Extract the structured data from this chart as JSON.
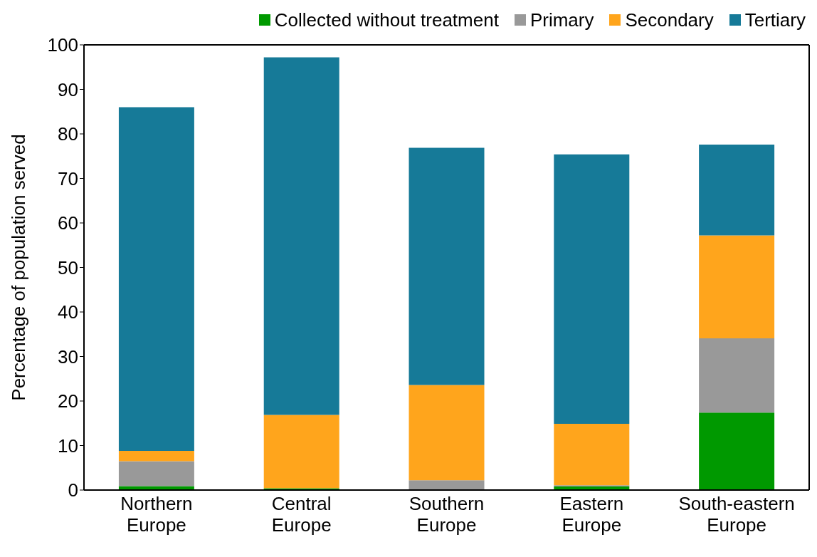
{
  "chart_data": {
    "type": "bar",
    "stacked": true,
    "ylabel": "Percentage of population served",
    "categories": [
      "Northern Europe",
      "Central Europe",
      "Southern Europe",
      "Eastern Europe",
      "South-eastern Europe"
    ],
    "series": [
      {
        "name": "Collected without treatment",
        "color": "#009900",
        "values": [
          0.9,
          0.4,
          0,
          0.8,
          17.4
        ]
      },
      {
        "name": "Primary",
        "color": "#999999",
        "values": [
          5.6,
          0,
          2.2,
          0.3,
          16.7
        ]
      },
      {
        "name": "Secondary",
        "color": "#ffa51c",
        "values": [
          2.3,
          16.5,
          21.4,
          13.8,
          23.1
        ]
      },
      {
        "name": "Tertiary",
        "color": "#167a98",
        "values": [
          77.2,
          80.3,
          53.3,
          60.5,
          20.4
        ]
      }
    ],
    "ylim": [
      0,
      100
    ],
    "yticks": [
      0,
      10,
      20,
      30,
      40,
      50,
      60,
      70,
      80,
      90,
      100
    ],
    "legend": "top"
  }
}
